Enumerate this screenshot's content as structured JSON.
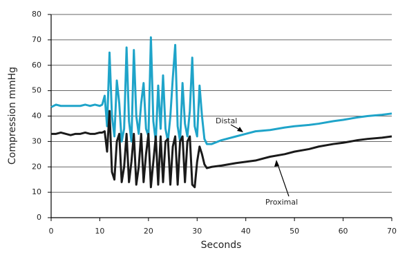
{
  "chart_data": {
    "type": "line",
    "x_label": "Seconds",
    "y_label": "Compression mmHg",
    "x": [
      0,
      1,
      2,
      3,
      4,
      5,
      6,
      7,
      8,
      9,
      10,
      10.5,
      11,
      11.5,
      12,
      12.5,
      13,
      13.5,
      14,
      14.5,
      15,
      15.5,
      16,
      16.5,
      17,
      17.5,
      18,
      18.5,
      19,
      19.5,
      20,
      20.5,
      21,
      21.5,
      22,
      22.5,
      23,
      23.5,
      24,
      24.5,
      25,
      25.5,
      26,
      26.5,
      27,
      27.5,
      28,
      28.5,
      29,
      29.5,
      30,
      30.5,
      31,
      31.5,
      32,
      33,
      35,
      38,
      40,
      42,
      45,
      48,
      50,
      53,
      55,
      58,
      60,
      63,
      65,
      68,
      70
    ],
    "series": [
      {
        "name": "Distal",
        "color": "#1fa4c9",
        "values": [
          43.5,
          44.5,
          44,
          44,
          44,
          44,
          44,
          44.5,
          44,
          44.5,
          44,
          44.5,
          48,
          36,
          65,
          40,
          32,
          54,
          45,
          30,
          35,
          67,
          38,
          30,
          66,
          40,
          33,
          45,
          53,
          35,
          32,
          71,
          38,
          30,
          52,
          35,
          56,
          35,
          30,
          40,
          55,
          68,
          36,
          30,
          53,
          37,
          32,
          42,
          63,
          36,
          32,
          52,
          40,
          31,
          29,
          29,
          30.5,
          32,
          33,
          34,
          34.5,
          35.5,
          36,
          36.5,
          37,
          38,
          38.5,
          39.5,
          40,
          40.5,
          41
        ]
      },
      {
        "name": "Proximal",
        "color": "#1a1a1a",
        "values": [
          33,
          33,
          33.5,
          33,
          32.5,
          33,
          33,
          33.5,
          33,
          33,
          33.5,
          33.5,
          34,
          26,
          42,
          18,
          15,
          30,
          33,
          14,
          20,
          33,
          14,
          22,
          33,
          13,
          20,
          33,
          14,
          25,
          33,
          12,
          22,
          32,
          13,
          32,
          14,
          30,
          31,
          13,
          28,
          32,
          13,
          30,
          32,
          14,
          30,
          32,
          13,
          12,
          22,
          28,
          25,
          21,
          19.5,
          20,
          20.5,
          21.5,
          22,
          22.5,
          24,
          25,
          26,
          27,
          28,
          29,
          29.5,
          30.5,
          31,
          31.5,
          32
        ]
      }
    ],
    "xlim": [
      0,
      70
    ],
    "xticks": [
      0,
      10,
      20,
      30,
      40,
      50,
      60,
      70
    ],
    "ylim": [
      0,
      80
    ],
    "yticks": [
      0,
      10,
      20,
      30,
      40,
      50,
      60,
      70,
      80
    ],
    "grid": true
  }
}
